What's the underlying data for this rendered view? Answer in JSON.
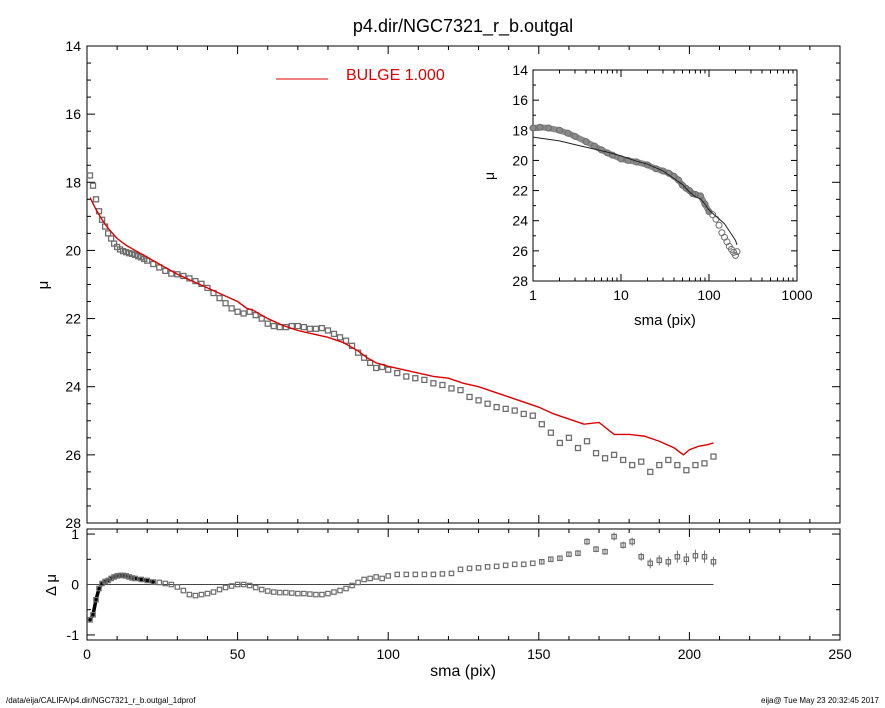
{
  "figure": {
    "title": "p4.dir/NGC7321_r_b.outgal",
    "footer_left": "/data/eija/CALIFA/p4.dir/NGC7321_r_b.outgal_1dprof",
    "footer_right": "eija@  Tue May 23 20:32:45 2017"
  },
  "colors": {
    "model": "#dd0000",
    "data": "#6e6e6e",
    "axis": "#000000"
  },
  "chart_data": [
    {
      "id": "main",
      "type": "scatter",
      "ylabel": "μ",
      "xlim": [
        0,
        250
      ],
      "ylim": [
        28,
        14
      ],
      "y_inverted": true,
      "y_ticks": [
        14,
        16,
        18,
        20,
        22,
        24,
        26,
        28
      ],
      "x_ticks": [
        0,
        50,
        100,
        150,
        200,
        250
      ],
      "x_ticklabels_shown": false,
      "legend": {
        "label": "BULGE  1.000",
        "position": "top-center",
        "color": "#dd0000"
      },
      "series": [
        {
          "name": "BULGE  1.000",
          "style": "line",
          "x": [
            1,
            3,
            5,
            7,
            10,
            13,
            16,
            20,
            25,
            30,
            35,
            40,
            45,
            50,
            53,
            55,
            60,
            65,
            70,
            75,
            80,
            85,
            90,
            93,
            96,
            100,
            105,
            110,
            115,
            120,
            125,
            130,
            135,
            140,
            145,
            150,
            155,
            160,
            165,
            170,
            175,
            180,
            185,
            190,
            195,
            198,
            200,
            203,
            206,
            208
          ],
          "y": [
            18.45,
            18.8,
            19.1,
            19.35,
            19.65,
            19.85,
            20.0,
            20.2,
            20.45,
            20.7,
            20.9,
            21.1,
            21.3,
            21.5,
            21.7,
            21.75,
            22.0,
            22.2,
            22.35,
            22.45,
            22.55,
            22.7,
            22.95,
            23.15,
            23.3,
            23.4,
            23.5,
            23.6,
            23.7,
            23.75,
            23.9,
            24.0,
            24.15,
            24.3,
            24.45,
            24.6,
            24.8,
            24.95,
            25.1,
            25.05,
            25.4,
            25.4,
            25.45,
            25.6,
            25.8,
            26.0,
            25.85,
            25.75,
            25.7,
            25.65
          ]
        },
        {
          "name": "",
          "style": "markers",
          "x": [
            1,
            2,
            3,
            4,
            5,
            6,
            7,
            8,
            9,
            10,
            11,
            12,
            13,
            14,
            15,
            16,
            17,
            18,
            19,
            20,
            22,
            24,
            26,
            28,
            30,
            32,
            34,
            36,
            38,
            40,
            42,
            44,
            46,
            48,
            50,
            52,
            54,
            56,
            58,
            60,
            62,
            64,
            66,
            68,
            70,
            72,
            74,
            76,
            78,
            80,
            82,
            84,
            86,
            88,
            90,
            92,
            94,
            96,
            98,
            100,
            103,
            106,
            109,
            112,
            115,
            118,
            121,
            124,
            127,
            130,
            133,
            136,
            139,
            142,
            145,
            148,
            151,
            154,
            157,
            160,
            163,
            166,
            169,
            172,
            175,
            178,
            181,
            184,
            187,
            190,
            193,
            196,
            199,
            202,
            205,
            208
          ],
          "y": [
            17.8,
            18.1,
            18.5,
            18.85,
            19.1,
            19.3,
            19.5,
            19.65,
            19.8,
            19.9,
            19.97,
            20.02,
            20.05,
            20.08,
            20.1,
            20.13,
            20.17,
            20.2,
            20.25,
            20.3,
            20.4,
            20.5,
            20.6,
            20.68,
            20.7,
            20.75,
            20.82,
            20.9,
            20.98,
            21.1,
            21.25,
            21.4,
            21.55,
            21.7,
            21.8,
            21.85,
            21.8,
            21.9,
            22.0,
            22.15,
            22.22,
            22.25,
            22.25,
            22.22,
            22.22,
            22.25,
            22.3,
            22.3,
            22.28,
            22.35,
            22.45,
            22.55,
            22.65,
            22.8,
            23.0,
            23.15,
            23.3,
            23.45,
            23.42,
            23.5,
            23.6,
            23.7,
            23.75,
            23.8,
            23.9,
            23.95,
            24.05,
            24.1,
            24.3,
            24.4,
            24.5,
            24.6,
            24.65,
            24.7,
            24.8,
            24.85,
            25.1,
            25.35,
            25.65,
            25.5,
            25.8,
            25.6,
            25.95,
            26.1,
            26.0,
            26.15,
            26.3,
            26.2,
            26.5,
            26.3,
            26.15,
            26.3,
            26.45,
            26.3,
            26.25,
            26.05
          ]
        }
      ]
    },
    {
      "id": "inset",
      "type": "scatter",
      "xlabel": "sma (pix)",
      "ylabel": "μ",
      "x_scale": "log",
      "xlim": [
        1,
        1000
      ],
      "ylim": [
        28,
        14
      ],
      "y_inverted": true,
      "y_ticks": [
        14,
        16,
        18,
        20,
        22,
        24,
        26,
        28
      ],
      "x_ticks": [
        1,
        10,
        100,
        1000
      ],
      "series": [
        {
          "name": "",
          "style": "line",
          "x": [
            1,
            2,
            3,
            5,
            7,
            10,
            15,
            20,
            30,
            40,
            50,
            60,
            70,
            80,
            90,
            100,
            120,
            150,
            180,
            200,
            208
          ],
          "y": [
            18.45,
            18.7,
            18.95,
            19.25,
            19.45,
            19.7,
            20.05,
            20.25,
            20.7,
            21.2,
            21.6,
            22.1,
            22.4,
            22.55,
            22.9,
            23.3,
            23.7,
            24.2,
            24.9,
            25.3,
            25.6
          ]
        },
        {
          "name": "",
          "style": "markers",
          "x": [
            1,
            1.2,
            1.5,
            2,
            2.5,
            3,
            4,
            5,
            6,
            7,
            8,
            10,
            12,
            15,
            20,
            25,
            30,
            35,
            40,
            45,
            50,
            55,
            60,
            65,
            70,
            80,
            90,
            100,
            110,
            120,
            130,
            140,
            150,
            160,
            170,
            180,
            190,
            200,
            208
          ],
          "y": [
            17.85,
            17.8,
            17.85,
            18.0,
            18.2,
            18.4,
            18.75,
            19.05,
            19.3,
            19.5,
            19.65,
            19.9,
            20.0,
            20.1,
            20.3,
            20.55,
            20.7,
            20.85,
            21.05,
            21.3,
            21.65,
            21.85,
            22.0,
            22.2,
            22.25,
            22.35,
            22.9,
            23.4,
            23.6,
            23.9,
            24.3,
            24.8,
            25.1,
            25.4,
            25.7,
            25.9,
            26.1,
            26.3,
            26.05
          ]
        }
      ]
    },
    {
      "id": "residual",
      "type": "scatter",
      "xlabel": "sma (pix)",
      "ylabel": "Δ μ",
      "xlim": [
        0,
        250
      ],
      "ylim": [
        -1.1,
        1.1
      ],
      "y_ticks": [
        -1,
        0,
        1
      ],
      "x_ticks": [
        0,
        50,
        100,
        150,
        200,
        250
      ],
      "zero_line": {
        "x_end": 208,
        "y": 0
      },
      "series": [
        {
          "name": "",
          "style": "markers",
          "x": [
            1,
            2,
            3,
            4,
            5,
            6,
            7,
            8,
            9,
            10,
            11,
            12,
            13,
            14,
            15,
            16,
            18,
            20,
            22,
            24,
            26,
            28,
            30,
            32,
            34,
            36,
            38,
            40,
            42,
            44,
            46,
            48,
            50,
            52,
            54,
            56,
            58,
            60,
            62,
            64,
            66,
            68,
            70,
            72,
            74,
            76,
            78,
            80,
            82,
            84,
            86,
            88,
            90,
            92,
            94,
            96,
            98,
            100,
            103,
            106,
            109,
            112,
            115,
            118,
            121,
            124,
            127,
            130,
            133,
            136,
            139,
            142,
            145,
            148,
            151,
            154,
            157,
            160,
            163,
            166,
            169,
            172,
            175,
            178,
            181,
            184,
            187,
            190,
            193,
            196,
            199,
            202,
            205,
            208
          ],
          "y": [
            -0.7,
            -0.6,
            -0.3,
            -0.08,
            0.02,
            0.06,
            0.08,
            0.12,
            0.15,
            0.17,
            0.18,
            0.18,
            0.17,
            0.15,
            0.13,
            0.12,
            0.1,
            0.08,
            0.05,
            0.04,
            0.02,
            0.0,
            -0.05,
            -0.12,
            -0.2,
            -0.22,
            -0.2,
            -0.18,
            -0.15,
            -0.1,
            -0.06,
            -0.03,
            0.0,
            0.0,
            -0.02,
            -0.06,
            -0.1,
            -0.13,
            -0.15,
            -0.16,
            -0.16,
            -0.17,
            -0.18,
            -0.18,
            -0.19,
            -0.2,
            -0.2,
            -0.18,
            -0.15,
            -0.12,
            -0.08,
            -0.02,
            0.04,
            0.1,
            0.12,
            0.15,
            0.12,
            0.17,
            0.2,
            0.2,
            0.2,
            0.2,
            0.2,
            0.21,
            0.22,
            0.3,
            0.32,
            0.33,
            0.35,
            0.36,
            0.38,
            0.4,
            0.4,
            0.42,
            0.45,
            0.5,
            0.52,
            0.6,
            0.62,
            0.85,
            0.7,
            0.65,
            0.95,
            0.78,
            0.85,
            0.55,
            0.42,
            0.48,
            0.45,
            0.55,
            0.5,
            0.57,
            0.55,
            0.45
          ],
          "error": [
            0.05,
            0.04,
            0.03,
            0.02,
            0.02,
            0.02,
            0.02,
            0.02,
            0.02,
            0.02,
            0.02,
            0.02,
            0.02,
            0.02,
            0.02,
            0.02,
            0.02,
            0.02,
            0.02,
            0.02,
            0.02,
            0.02,
            0.02,
            0.02,
            0.02,
            0.02,
            0.02,
            0.02,
            0.02,
            0.02,
            0.02,
            0.02,
            0.02,
            0.02,
            0.02,
            0.02,
            0.02,
            0.02,
            0.02,
            0.02,
            0.02,
            0.02,
            0.02,
            0.02,
            0.02,
            0.02,
            0.02,
            0.02,
            0.02,
            0.02,
            0.02,
            0.02,
            0.02,
            0.02,
            0.03,
            0.03,
            0.03,
            0.03,
            0.03,
            0.03,
            0.03,
            0.03,
            0.03,
            0.03,
            0.03,
            0.03,
            0.04,
            0.04,
            0.04,
            0.04,
            0.04,
            0.04,
            0.04,
            0.04,
            0.05,
            0.05,
            0.05,
            0.05,
            0.06,
            0.07,
            0.06,
            0.06,
            0.08,
            0.07,
            0.08,
            0.08,
            0.1,
            0.1,
            0.1,
            0.12,
            0.12,
            0.12,
            0.12,
            0.1
          ]
        }
      ]
    }
  ]
}
